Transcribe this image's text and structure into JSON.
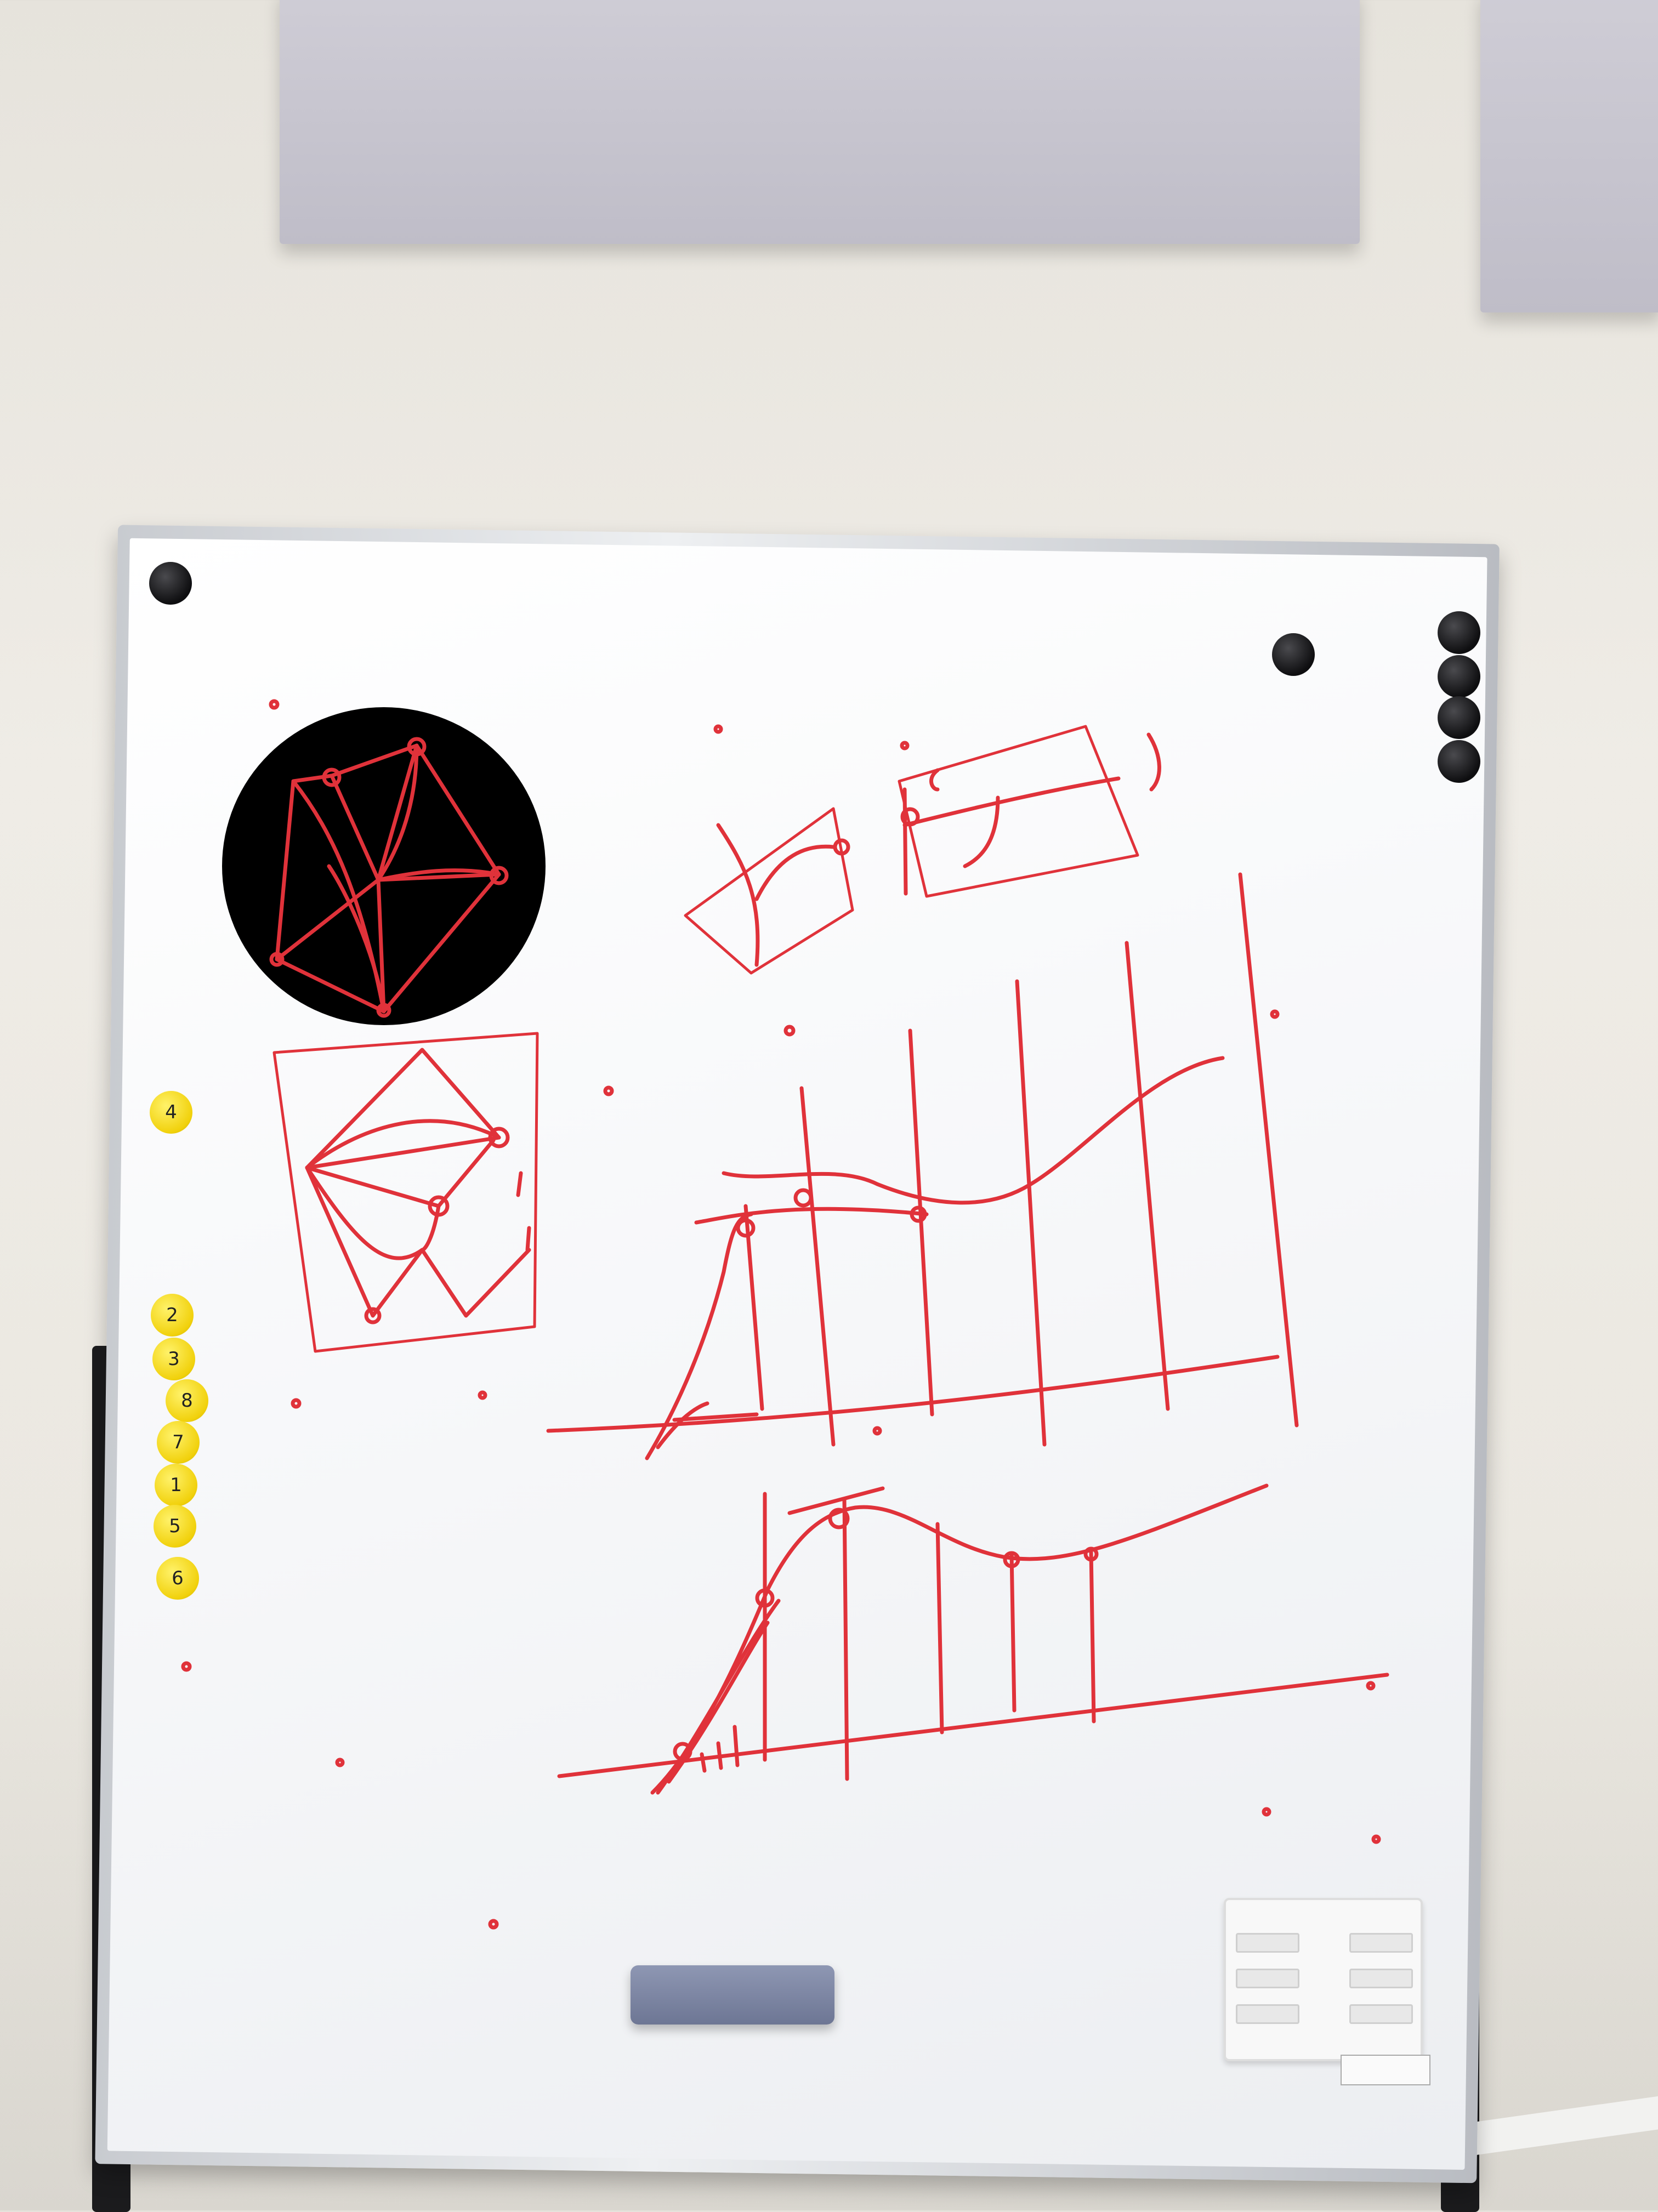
{
  "scene": {
    "subject": "whiteboard-on-stand",
    "marker_color": "#e0323a",
    "board_frame_color": "#c8cbd0",
    "wall_color": "#ebe8e1"
  },
  "magnets": {
    "yellow_labels": [
      "4",
      "2",
      "3",
      "8",
      "7",
      "1",
      "5",
      "6"
    ]
  }
}
